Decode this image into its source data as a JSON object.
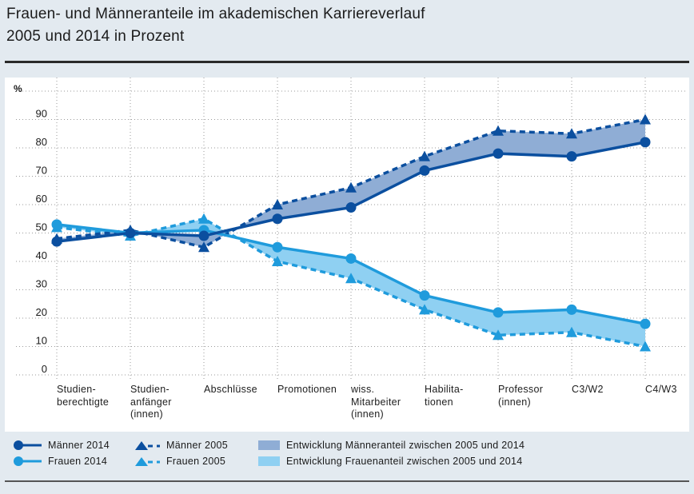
{
  "title_lines": [
    "Frauen- und Männeranteile im akademischen Karriereverlauf",
    "2005 und 2014 in Prozent"
  ],
  "colors": {
    "maenner": "#0b4f9f",
    "frauen": "#1f9bdc",
    "band_maenner": "#8fadd5",
    "band_frauen": "#8fd0f2",
    "background": "#e3eaf0"
  },
  "legend": {
    "maenner_2014": "Männer 2014",
    "frauen_2014": "Frauen 2014",
    "maenner_2005": "Männer 2005",
    "frauen_2005": "Frauen 2005",
    "band_maenner": "Entwicklung Männeranteil zwischen 2005 und 2014",
    "band_frauen": "Entwicklung Frauenanteil zwischen 2005 und 2014"
  },
  "chart_data": {
    "type": "line",
    "title": "Frauen- und Männeranteile im akademischen Karriereverlauf 2005 und 2014 in Prozent",
    "xlabel": "",
    "ylabel": "%",
    "ylim": [
      0,
      100
    ],
    "yticks": [
      0,
      10,
      20,
      30,
      40,
      50,
      60,
      70,
      80,
      90
    ],
    "grid": true,
    "legend_position": "bottom",
    "categories": [
      "Studien-\nberechtigte",
      "Studien-\nanfänger\n(innen)",
      "Abschlüsse",
      "Promotionen",
      "wiss.\nMitarbeiter\n(innen)",
      "Habilita-\ntionen",
      "Professor\n(innen)",
      "C3/W2",
      "C4/W3"
    ],
    "series": [
      {
        "name": "Männer 2014",
        "style": "solid-circle",
        "values": [
          47,
          50,
          49,
          55,
          59,
          72,
          78,
          77,
          82
        ]
      },
      {
        "name": "Frauen 2014",
        "style": "solid-circle",
        "values": [
          53,
          50,
          51,
          45,
          41,
          28,
          22,
          23,
          18
        ]
      },
      {
        "name": "Männer 2005",
        "style": "dashed-triangle",
        "values": [
          48,
          51,
          45,
          60,
          66,
          77,
          86,
          85,
          90
        ]
      },
      {
        "name": "Frauen 2005",
        "style": "dashed-triangle",
        "values": [
          52,
          49,
          55,
          40,
          34,
          23,
          14,
          15,
          10
        ]
      }
    ],
    "bands": [
      {
        "name": "Entwicklung Männeranteil zwischen 2005 und 2014",
        "between": [
          "Männer 2005",
          "Männer 2014"
        ]
      },
      {
        "name": "Entwicklung Frauenanteil zwischen 2005 und 2014",
        "between": [
          "Frauen 2005",
          "Frauen 2014"
        ]
      }
    ]
  }
}
